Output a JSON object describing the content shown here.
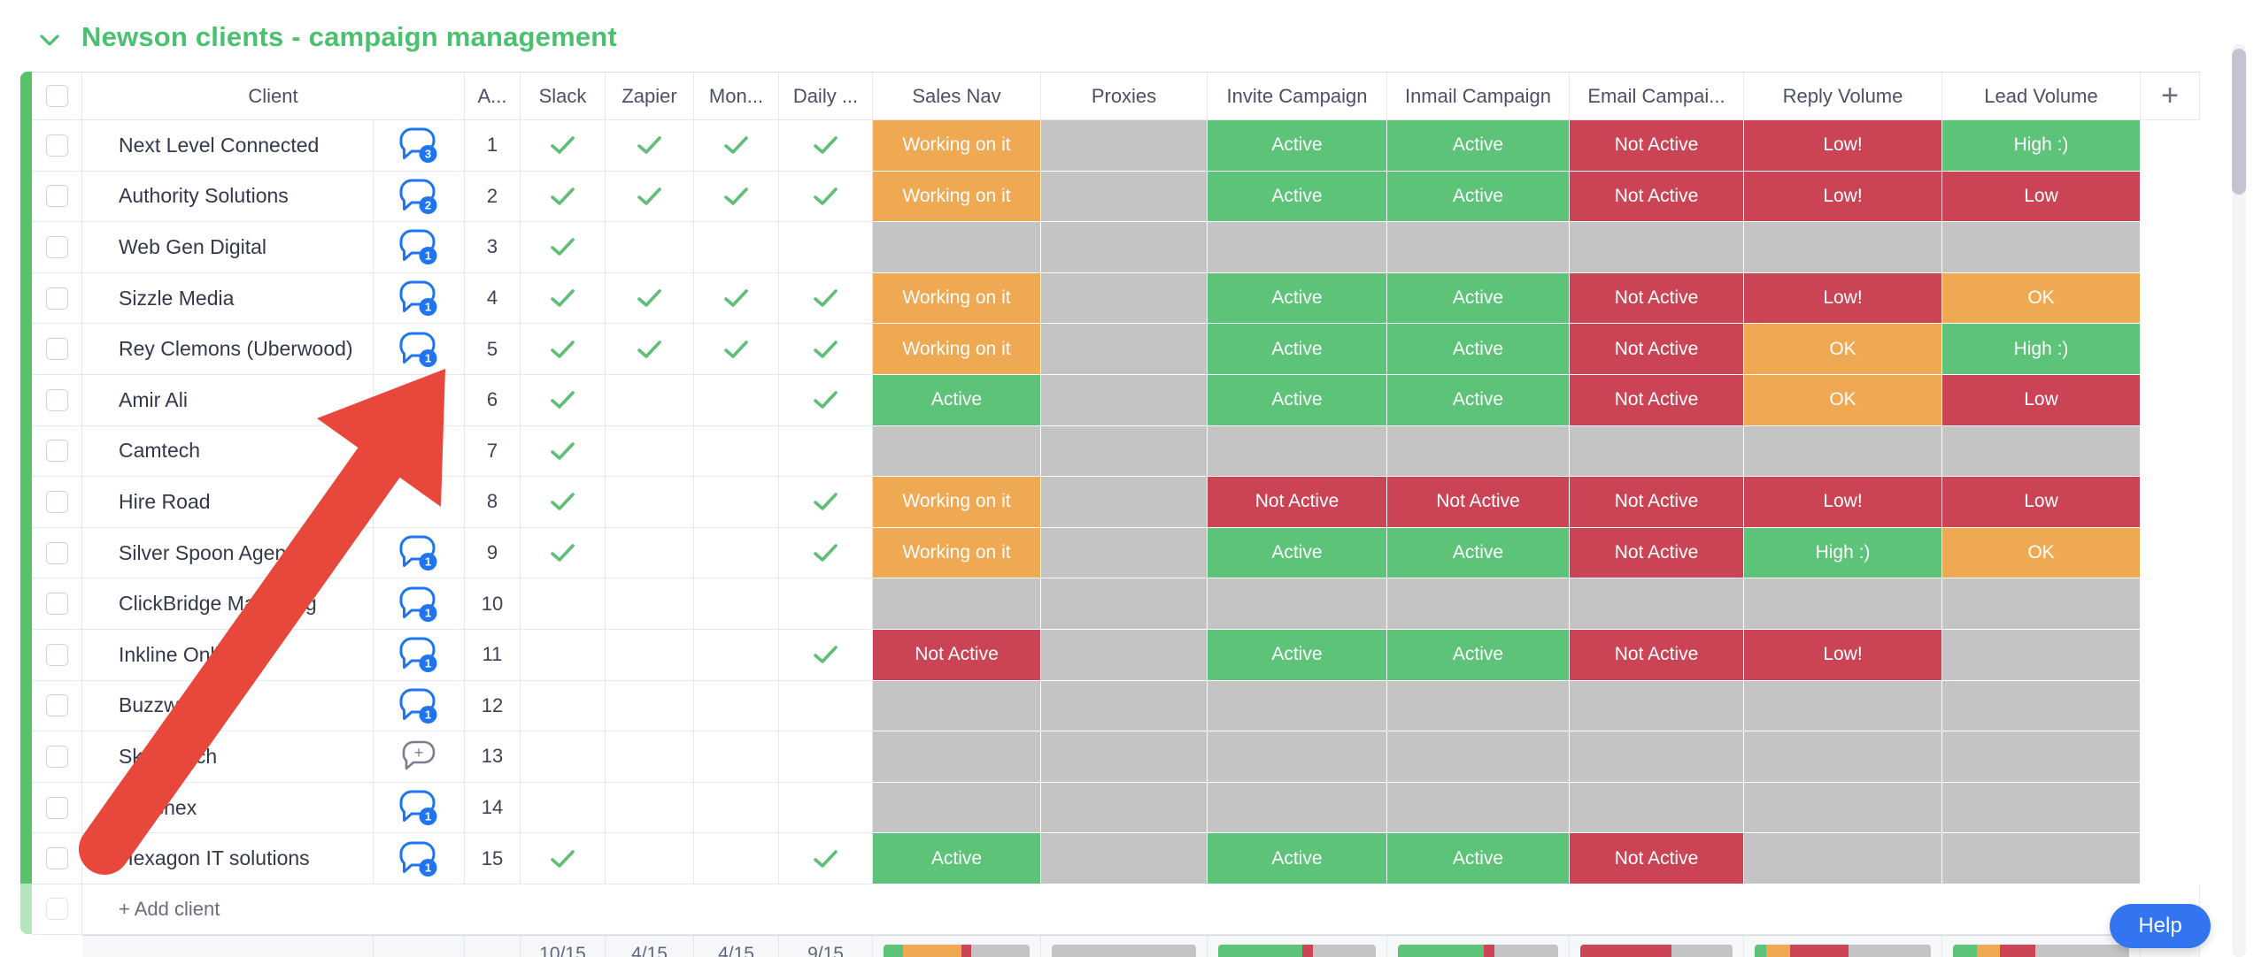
{
  "board": {
    "title": "Newson clients - campaign management",
    "add_client_label": "+ Add client",
    "add_column_label": "+",
    "help_label": "Help"
  },
  "columns": [
    "Client",
    "A...",
    "Slack",
    "Zapier",
    "Mon...",
    "Daily ...",
    "Sales Nav",
    "Proxies",
    "Invite Campaign",
    "Inmail Campaign",
    "Email Campai...",
    "Reply Volume",
    "Lead Volume"
  ],
  "colors": {
    "green": "#5dc378",
    "orange": "#efa953",
    "red": "#cb4455",
    "gray": "#c4c4c4",
    "check": "#5fbe77",
    "chat_blue": "#1f74ef",
    "title_green": "#49c16f",
    "group_bar_green": "#57c368",
    "help_blue": "#3374f0",
    "arrow_red": "#e8473c"
  },
  "rows": [
    {
      "num": "1",
      "client": "Next Level Connected",
      "chat": "3",
      "checks": [
        1,
        1,
        1,
        1
      ],
      "statuses": [
        {
          "t": "Working on it",
          "c": "orange"
        },
        {
          "t": "",
          "c": "gray"
        },
        {
          "t": "Active",
          "c": "green"
        },
        {
          "t": "Active",
          "c": "green"
        },
        {
          "t": "Not Active",
          "c": "red"
        },
        {
          "t": "Low!",
          "c": "red"
        },
        {
          "t": "High :)",
          "c": "green"
        }
      ]
    },
    {
      "num": "2",
      "client": "Authority Solutions",
      "chat": "2",
      "checks": [
        1,
        1,
        1,
        1
      ],
      "statuses": [
        {
          "t": "Working on it",
          "c": "orange"
        },
        {
          "t": "",
          "c": "gray"
        },
        {
          "t": "Active",
          "c": "green"
        },
        {
          "t": "Active",
          "c": "green"
        },
        {
          "t": "Not Active",
          "c": "red"
        },
        {
          "t": "Low!",
          "c": "red"
        },
        {
          "t": "Low",
          "c": "red"
        }
      ]
    },
    {
      "num": "3",
      "client": "Web Gen Digital",
      "chat": "1",
      "checks": [
        1,
        0,
        0,
        0
      ],
      "statuses": [
        {
          "t": "",
          "c": "gray"
        },
        {
          "t": "",
          "c": "gray"
        },
        {
          "t": "",
          "c": "gray"
        },
        {
          "t": "",
          "c": "gray"
        },
        {
          "t": "",
          "c": "gray"
        },
        {
          "t": "",
          "c": "gray"
        },
        {
          "t": "",
          "c": "gray"
        }
      ]
    },
    {
      "num": "4",
      "client": "Sizzle Media",
      "chat": "1",
      "checks": [
        1,
        1,
        1,
        1
      ],
      "statuses": [
        {
          "t": "Working on it",
          "c": "orange"
        },
        {
          "t": "",
          "c": "gray"
        },
        {
          "t": "Active",
          "c": "green"
        },
        {
          "t": "Active",
          "c": "green"
        },
        {
          "t": "Not Active",
          "c": "red"
        },
        {
          "t": "Low!",
          "c": "red"
        },
        {
          "t": "OK",
          "c": "orange"
        }
      ]
    },
    {
      "num": "5",
      "client": "Rey Clemons (Uberwood)",
      "chat": "1",
      "checks": [
        1,
        1,
        1,
        1
      ],
      "statuses": [
        {
          "t": "Working on it",
          "c": "orange"
        },
        {
          "t": "",
          "c": "gray"
        },
        {
          "t": "Active",
          "c": "green"
        },
        {
          "t": "Active",
          "c": "green"
        },
        {
          "t": "Not Active",
          "c": "red"
        },
        {
          "t": "OK",
          "c": "orange"
        },
        {
          "t": "High :)",
          "c": "green"
        }
      ]
    },
    {
      "num": "6",
      "client": "Amir Ali",
      "chat": null,
      "checks": [
        1,
        0,
        0,
        1
      ],
      "statuses": [
        {
          "t": "Active",
          "c": "green"
        },
        {
          "t": "",
          "c": "gray"
        },
        {
          "t": "Active",
          "c": "green"
        },
        {
          "t": "Active",
          "c": "green"
        },
        {
          "t": "Not Active",
          "c": "red"
        },
        {
          "t": "OK",
          "c": "orange"
        },
        {
          "t": "Low",
          "c": "red"
        }
      ]
    },
    {
      "num": "7",
      "client": "Camtech",
      "chat": null,
      "checks": [
        1,
        0,
        0,
        0
      ],
      "statuses": [
        {
          "t": "",
          "c": "gray"
        },
        {
          "t": "",
          "c": "gray"
        },
        {
          "t": "",
          "c": "gray"
        },
        {
          "t": "",
          "c": "gray"
        },
        {
          "t": "",
          "c": "gray"
        },
        {
          "t": "",
          "c": "gray"
        },
        {
          "t": "",
          "c": "gray"
        }
      ]
    },
    {
      "num": "8",
      "client": "Hire Road",
      "chat": null,
      "checks": [
        1,
        0,
        0,
        1
      ],
      "statuses": [
        {
          "t": "Working on it",
          "c": "orange"
        },
        {
          "t": "",
          "c": "gray"
        },
        {
          "t": "Not Active",
          "c": "red"
        },
        {
          "t": "Not Active",
          "c": "red"
        },
        {
          "t": "Not Active",
          "c": "red"
        },
        {
          "t": "Low!",
          "c": "red"
        },
        {
          "t": "Low",
          "c": "red"
        }
      ]
    },
    {
      "num": "9",
      "client": "Silver Spoon Agency",
      "chat": "1",
      "checks": [
        1,
        0,
        0,
        1
      ],
      "statuses": [
        {
          "t": "Working on it",
          "c": "orange"
        },
        {
          "t": "",
          "c": "gray"
        },
        {
          "t": "Active",
          "c": "green"
        },
        {
          "t": "Active",
          "c": "green"
        },
        {
          "t": "Not Active",
          "c": "red"
        },
        {
          "t": "High :)",
          "c": "green"
        },
        {
          "t": "OK",
          "c": "orange"
        }
      ]
    },
    {
      "num": "10",
      "client": "ClickBridge Marketing",
      "chat": "1",
      "checks": [
        0,
        0,
        0,
        0
      ],
      "statuses": [
        {
          "t": "",
          "c": "gray"
        },
        {
          "t": "",
          "c": "gray"
        },
        {
          "t": "",
          "c": "gray"
        },
        {
          "t": "",
          "c": "gray"
        },
        {
          "t": "",
          "c": "gray"
        },
        {
          "t": "",
          "c": "gray"
        },
        {
          "t": "",
          "c": "gray"
        }
      ]
    },
    {
      "num": "11",
      "client": "Inkline Online",
      "chat": "1",
      "checks": [
        0,
        0,
        0,
        1
      ],
      "statuses": [
        {
          "t": "Not Active",
          "c": "red"
        },
        {
          "t": "",
          "c": "gray"
        },
        {
          "t": "Active",
          "c": "green"
        },
        {
          "t": "Active",
          "c": "green"
        },
        {
          "t": "Not Active",
          "c": "red"
        },
        {
          "t": "Low!",
          "c": "red"
        },
        {
          "t": "",
          "c": "gray"
        }
      ]
    },
    {
      "num": "12",
      "client": "Buzzworks",
      "chat": "1",
      "checks": [
        0,
        0,
        0,
        0
      ],
      "statuses": [
        {
          "t": "",
          "c": "gray"
        },
        {
          "t": "",
          "c": "gray"
        },
        {
          "t": "",
          "c": "gray"
        },
        {
          "t": "",
          "c": "gray"
        },
        {
          "t": "",
          "c": "gray"
        },
        {
          "t": "",
          "c": "gray"
        },
        {
          "t": "",
          "c": "gray"
        }
      ]
    },
    {
      "num": "13",
      "client": "SkySearch",
      "chat": "+",
      "checks": [
        0,
        0,
        0,
        0
      ],
      "statuses": [
        {
          "t": "",
          "c": "gray"
        },
        {
          "t": "",
          "c": "gray"
        },
        {
          "t": "",
          "c": "gray"
        },
        {
          "t": "",
          "c": "gray"
        },
        {
          "t": "",
          "c": "gray"
        },
        {
          "t": "",
          "c": "gray"
        },
        {
          "t": "",
          "c": "gray"
        }
      ]
    },
    {
      "num": "14",
      "client": "Paychex",
      "chat": "1",
      "checks": [
        0,
        0,
        0,
        0
      ],
      "statuses": [
        {
          "t": "",
          "c": "gray"
        },
        {
          "t": "",
          "c": "gray"
        },
        {
          "t": "",
          "c": "gray"
        },
        {
          "t": "",
          "c": "gray"
        },
        {
          "t": "",
          "c": "gray"
        },
        {
          "t": "",
          "c": "gray"
        },
        {
          "t": "",
          "c": "gray"
        }
      ]
    },
    {
      "num": "15",
      "client": "Hexagon IT solutions",
      "chat": "1",
      "checks": [
        1,
        0,
        0,
        1
      ],
      "statuses": [
        {
          "t": "Active",
          "c": "green"
        },
        {
          "t": "",
          "c": "gray"
        },
        {
          "t": "Active",
          "c": "green"
        },
        {
          "t": "Active",
          "c": "green"
        },
        {
          "t": "Not Active",
          "c": "red"
        },
        {
          "t": "",
          "c": "gray"
        },
        {
          "t": "",
          "c": "gray"
        }
      ]
    }
  ],
  "summary": {
    "counts": [
      {
        "column": "Slack",
        "text": "10/15"
      },
      {
        "column": "Zapier",
        "text": "4/15"
      },
      {
        "column": "Mon...",
        "text": "4/15"
      },
      {
        "column": "Daily ...",
        "text": "9/15"
      }
    ],
    "bars": [
      {
        "column": "Sales Nav",
        "segments": [
          [
            "green",
            2
          ],
          [
            "orange",
            6
          ],
          [
            "red",
            1
          ],
          [
            "gray",
            6
          ]
        ]
      },
      {
        "column": "Proxies",
        "segments": [
          [
            "gray",
            15
          ]
        ]
      },
      {
        "column": "Invite Campaign",
        "segments": [
          [
            "green",
            8
          ],
          [
            "red",
            1
          ],
          [
            "gray",
            6
          ]
        ]
      },
      {
        "column": "Inmail Campaign",
        "segments": [
          [
            "green",
            8
          ],
          [
            "red",
            1
          ],
          [
            "gray",
            6
          ]
        ]
      },
      {
        "column": "Email Campaign",
        "segments": [
          [
            "red",
            9
          ],
          [
            "gray",
            6
          ]
        ]
      },
      {
        "column": "Reply Volume",
        "segments": [
          [
            "green",
            1
          ],
          [
            "orange",
            2
          ],
          [
            "red",
            5
          ],
          [
            "gray",
            7
          ]
        ]
      },
      {
        "column": "Lead Volume",
        "segments": [
          [
            "green",
            2
          ],
          [
            "orange",
            2
          ],
          [
            "red",
            3
          ],
          [
            "gray",
            8
          ]
        ]
      }
    ]
  }
}
